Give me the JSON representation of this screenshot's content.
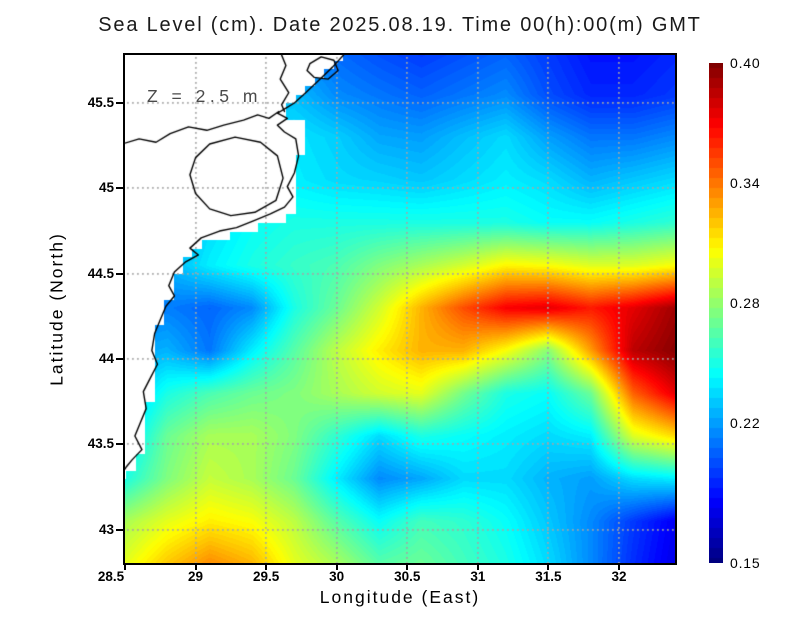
{
  "title": "Sea Level (cm). Date 2025.08.19. Time 00(h):00(m) GMT",
  "annotation": "Z = 2.5 m",
  "axes": {
    "x": {
      "label": "Longitude (East)",
      "range": [
        28.5,
        32.397
      ],
      "ticks": [
        {
          "label": "28.5",
          "value": 28.5
        },
        {
          "label": "29",
          "value": 29.0
        },
        {
          "label": "29.5",
          "value": 29.5
        },
        {
          "label": "30",
          "value": 30.0
        },
        {
          "label": "30.5",
          "value": 30.5
        },
        {
          "label": "31",
          "value": 31.0
        },
        {
          "label": "31.5",
          "value": 31.5
        },
        {
          "label": "32",
          "value": 32.0
        }
      ]
    },
    "y": {
      "label": "Latitude (North)",
      "range": [
        42.806,
        45.781
      ],
      "ticks": [
        {
          "label": "43",
          "value": 43.0
        },
        {
          "label": "43.5",
          "value": 43.5
        },
        {
          "label": "44",
          "value": 44.0
        },
        {
          "label": "44.5",
          "value": 44.5
        },
        {
          "label": "45",
          "value": 45.0
        },
        {
          "label": "45.5",
          "value": 45.5
        }
      ]
    }
  },
  "gridlines": {
    "x": [
      29.0,
      29.5,
      30.0,
      30.5,
      31.0,
      31.5,
      32.0
    ],
    "y": [
      43.0,
      43.5,
      44.0,
      44.5,
      45.0,
      45.5
    ],
    "color": "rgba(165,165,165,0.9)"
  },
  "colorbar": {
    "min": 0.15,
    "max": 0.4,
    "ticks": [
      {
        "label": "0.40",
        "value": 0.4
      },
      {
        "label": "0.34",
        "value": 0.34
      },
      {
        "label": "0.28",
        "value": 0.28
      },
      {
        "label": "0.22",
        "value": 0.22
      },
      {
        "label": "0.15",
        "value": 0.15
      }
    ]
  },
  "chart_data": {
    "type": "heatmap",
    "title": "Sea Level (cm). Date 2025.08.19. Time 00(h):00(m) GMT",
    "xlabel": "Longitude (East)",
    "ylabel": "Latitude (North)",
    "depth_annotation": "Z = 2.5 m",
    "units": "cm",
    "colormap": "jet",
    "zmin": 0.15,
    "zmax": 0.4,
    "xlim": [
      28.5,
      32.397
    ],
    "ylim": [
      42.806,
      45.781
    ],
    "lon": [
      28.5,
      28.8,
      29.1,
      29.4,
      29.7,
      30.0,
      30.3,
      30.6,
      30.9,
      31.2,
      31.5,
      31.8,
      32.1,
      32.4
    ],
    "lat": [
      45.8,
      45.55,
      45.3,
      45.05,
      44.8,
      44.55,
      44.3,
      44.05,
      43.8,
      43.55,
      43.3,
      43.05,
      42.8
    ],
    "values": [
      [
        0.22,
        0.22,
        0.22,
        0.22,
        0.215,
        0.207,
        0.2,
        0.195,
        0.2,
        0.205,
        0.195,
        0.185,
        0.185,
        0.19
      ],
      [
        0.225,
        0.225,
        0.225,
        0.225,
        0.228,
        0.215,
        0.21,
        0.205,
        0.21,
        0.215,
        0.2,
        0.19,
        0.19,
        0.195
      ],
      [
        0.228,
        0.23,
        0.233,
        0.235,
        0.238,
        0.232,
        0.222,
        0.22,
        0.228,
        0.235,
        0.22,
        0.21,
        0.21,
        0.215
      ],
      [
        0.222,
        0.225,
        0.228,
        0.232,
        0.24,
        0.235,
        0.233,
        0.23,
        0.235,
        0.24,
        0.235,
        0.225,
        0.23,
        0.235
      ],
      [
        0.215,
        0.22,
        0.235,
        0.245,
        0.25,
        0.25,
        0.25,
        0.25,
        0.25,
        0.25,
        0.245,
        0.245,
        0.25,
        0.255
      ],
      [
        0.215,
        0.225,
        0.24,
        0.25,
        0.257,
        0.262,
        0.275,
        0.285,
        0.295,
        0.308,
        0.305,
        0.298,
        0.298,
        0.305
      ],
      [
        0.21,
        0.212,
        0.206,
        0.215,
        0.25,
        0.27,
        0.295,
        0.325,
        0.35,
        0.37,
        0.375,
        0.363,
        0.375,
        0.392
      ],
      [
        0.22,
        0.225,
        0.21,
        0.24,
        0.265,
        0.29,
        0.31,
        0.325,
        0.325,
        0.305,
        0.277,
        0.33,
        0.385,
        0.398
      ],
      [
        0.225,
        0.25,
        0.262,
        0.27,
        0.275,
        0.285,
        0.295,
        0.3,
        0.272,
        0.25,
        0.245,
        0.27,
        0.345,
        0.375
      ],
      [
        0.235,
        0.27,
        0.285,
        0.285,
        0.275,
        0.255,
        0.235,
        0.25,
        0.245,
        0.24,
        0.235,
        0.24,
        0.298,
        0.315
      ],
      [
        0.25,
        0.275,
        0.292,
        0.285,
        0.27,
        0.24,
        0.215,
        0.222,
        0.235,
        0.235,
        0.225,
        0.22,
        0.235,
        0.24
      ],
      [
        0.285,
        0.3,
        0.31,
        0.305,
        0.29,
        0.265,
        0.245,
        0.26,
        0.255,
        0.245,
        0.23,
        0.215,
        0.195,
        0.178
      ],
      [
        0.3,
        0.32,
        0.335,
        0.325,
        0.3,
        0.285,
        0.265,
        0.27,
        0.26,
        0.25,
        0.235,
        0.215,
        0.192,
        0.175
      ]
    ],
    "land_mask_polygon": [
      [
        28.45,
        45.82
      ],
      [
        30.07,
        45.82
      ],
      [
        30.05,
        45.78
      ],
      [
        29.7,
        45.5
      ],
      [
        29.63,
        45.44
      ],
      [
        29.76,
        45.37
      ],
      [
        29.75,
        45.2
      ],
      [
        29.68,
        45.02
      ],
      [
        29.73,
        44.92
      ],
      [
        29.62,
        44.82
      ],
      [
        29.35,
        44.76
      ],
      [
        29.11,
        44.7
      ],
      [
        28.97,
        44.62
      ],
      [
        28.88,
        44.5
      ],
      [
        28.83,
        44.38
      ],
      [
        28.76,
        44.26
      ],
      [
        28.72,
        44.1
      ],
      [
        28.71,
        43.95
      ],
      [
        28.69,
        43.8
      ],
      [
        28.64,
        43.65
      ],
      [
        28.62,
        43.5
      ],
      [
        28.6,
        43.4
      ],
      [
        28.52,
        43.34
      ],
      [
        28.45,
        43.3
      ]
    ],
    "coastlines": {
      "main": [
        [
          30.07,
          45.8
        ],
        [
          29.97,
          45.71
        ],
        [
          29.87,
          45.63
        ],
        [
          29.78,
          45.56
        ],
        [
          29.7,
          45.5
        ],
        [
          29.64,
          45.47
        ],
        [
          29.58,
          45.44
        ],
        [
          29.65,
          45.41
        ],
        [
          29.58,
          45.37
        ],
        [
          29.63,
          45.33
        ],
        [
          29.71,
          45.29
        ],
        [
          29.73,
          45.19
        ],
        [
          29.7,
          45.09
        ],
        [
          29.65,
          45.01
        ],
        [
          29.69,
          44.95
        ],
        [
          29.63,
          44.89
        ],
        [
          29.53,
          44.85
        ],
        [
          29.41,
          44.81
        ],
        [
          29.29,
          44.77
        ],
        [
          29.17,
          44.75
        ],
        [
          29.04,
          44.71
        ],
        [
          28.96,
          44.65
        ],
        [
          29.02,
          44.61
        ],
        [
          28.93,
          44.57
        ],
        [
          28.85,
          44.51
        ],
        [
          28.81,
          44.43
        ],
        [
          28.85,
          44.37
        ],
        [
          28.79,
          44.31
        ],
        [
          28.75,
          44.23
        ],
        [
          28.71,
          44.15
        ],
        [
          28.69,
          44.05
        ],
        [
          28.73,
          43.97
        ],
        [
          28.68,
          43.89
        ],
        [
          28.63,
          43.81
        ],
        [
          28.65,
          43.71
        ],
        [
          28.61,
          43.63
        ],
        [
          28.57,
          43.55
        ],
        [
          28.62,
          43.47
        ],
        [
          28.55,
          43.41
        ],
        [
          28.51,
          43.37
        ],
        [
          28.48,
          43.33
        ]
      ],
      "danube_river": [
        [
          28.48,
          45.26
        ],
        [
          28.6,
          45.29
        ],
        [
          28.72,
          45.27
        ],
        [
          28.82,
          45.32
        ],
        [
          28.95,
          45.36
        ],
        [
          29.08,
          45.34
        ],
        [
          29.2,
          45.37
        ],
        [
          29.34,
          45.4
        ],
        [
          29.44,
          45.43
        ],
        [
          29.52,
          45.41
        ],
        [
          29.59,
          45.45
        ]
      ],
      "lagoon": [
        [
          29.0,
          45.18
        ],
        [
          29.1,
          45.26
        ],
        [
          29.28,
          45.3
        ],
        [
          29.46,
          45.27
        ],
        [
          29.58,
          45.19
        ],
        [
          29.62,
          45.06
        ],
        [
          29.57,
          44.93
        ],
        [
          29.42,
          44.86
        ],
        [
          29.25,
          44.84
        ],
        [
          29.1,
          44.88
        ],
        [
          29.0,
          44.97
        ],
        [
          28.96,
          45.08
        ],
        [
          29.0,
          45.18
        ]
      ],
      "delta_west": [
        [
          29.6,
          45.8
        ],
        [
          29.64,
          45.72
        ],
        [
          29.6,
          45.64
        ],
        [
          29.66,
          45.56
        ],
        [
          29.61,
          45.49
        ],
        [
          29.63,
          45.45
        ]
      ],
      "island": [
        [
          29.81,
          45.73
        ],
        [
          29.89,
          45.77
        ],
        [
          29.98,
          45.75
        ],
        [
          30.01,
          45.69
        ],
        [
          29.94,
          45.64
        ],
        [
          29.84,
          45.65
        ],
        [
          29.79,
          45.69
        ],
        [
          29.81,
          45.73
        ]
      ]
    }
  }
}
